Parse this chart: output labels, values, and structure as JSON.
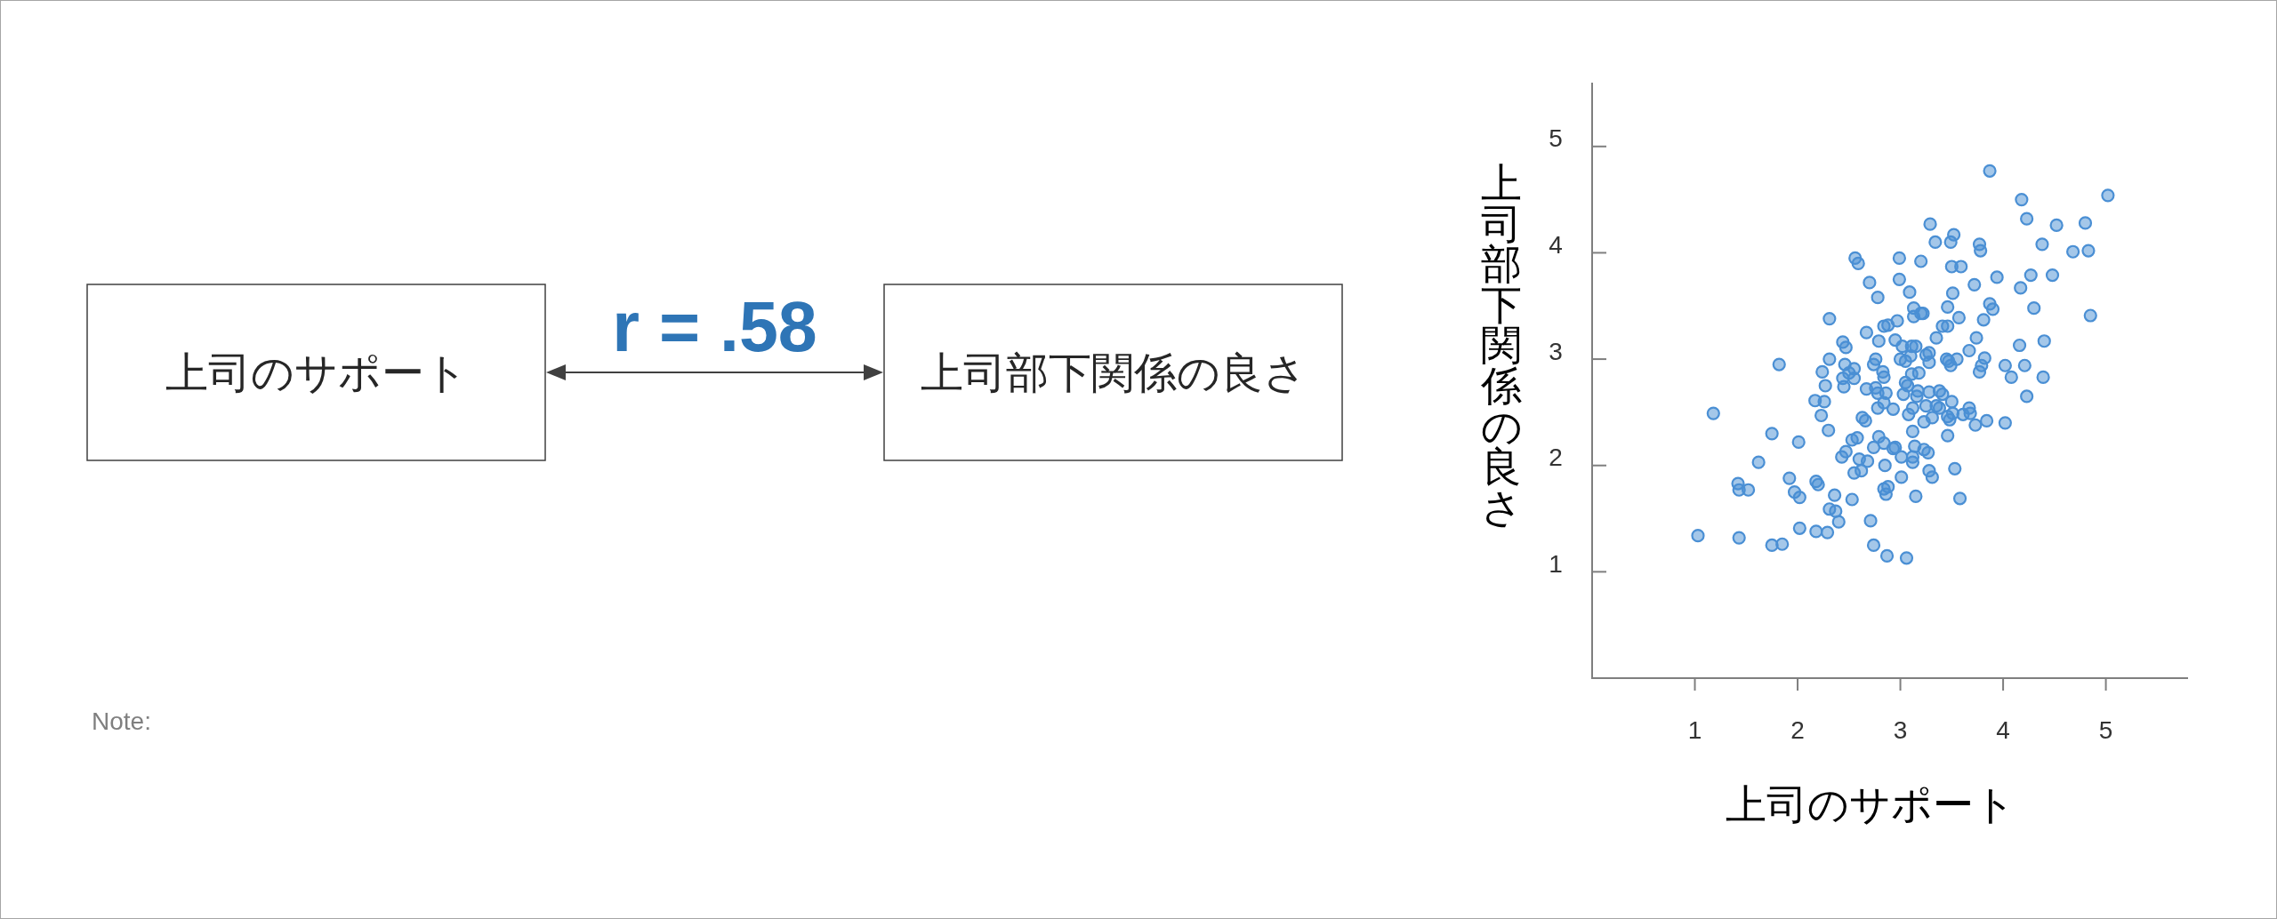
{
  "chart_data": [
    {
      "type": "other",
      "categories": [
        "上司のサポート",
        "上司部下関係の良さ"
      ],
      "annotations": [
        "r = .58",
        "Note:"
      ]
    },
    {
      "type": "scatter",
      "xlabel": "上司のサポート",
      "ylabel": "上司部下関係の良さ",
      "marker": "circle",
      "xlim": [
        0,
        5.8
      ],
      "ylim": [
        0,
        5.6
      ],
      "xticks": [
        1,
        2,
        3,
        4,
        5
      ],
      "yticks": [
        1,
        2,
        3,
        4,
        5
      ],
      "x": [
        3.87,
        5.02,
        4.18,
        4.23,
        3.29,
        4.52,
        4.8,
        3.52,
        3.34,
        3.49,
        3.77,
        3.78,
        4.38,
        2.56,
        2.59,
        2.99,
        3.2,
        4.68,
        4.83,
        3.5,
        3.59,
        2.7,
        2.99,
        3.94,
        3.72,
        4.27,
        4.48,
        4.17,
        2.78,
        3.09,
        3.51,
        3.13,
        3.13,
        3.2,
        3.22,
        3.46,
        3.87,
        3.9,
        4.3,
        2.31,
        2.84,
        2.88,
        2.97,
        3.41,
        3.46,
        3.57,
        3.81,
        4.85,
        2.67,
        2.79,
        2.95,
        3.35,
        2.44,
        2.47,
        3.02,
        3.11,
        3.15,
        3.74,
        4.16,
        4.4,
        3.28,
        3.25,
        3.67,
        2.31,
        2.76,
        3.0,
        3.05,
        3.1,
        3.28,
        3.45,
        3.47,
        3.49,
        3.55,
        3.82,
        3.79,
        3.77,
        4.02,
        4.21,
        1.82,
        2.46,
        2.55,
        2.74,
        2.24,
        2.5,
        2.44,
        2.55,
        2.83,
        2.84,
        3.11,
        3.18,
        4.08,
        4.39,
        2.27,
        2.45,
        3.05,
        3.07,
        2.67,
        2.76,
        2.78,
        2.86,
        3.03,
        3.17,
        3.16,
        3.28,
        3.38,
        3.41,
        2.17,
        2.26,
        3.5,
        4.23,
        2.78,
        2.84,
        2.93,
        3.12,
        3.25,
        3.35,
        3.38,
        3.67,
        3.68,
        2.23,
        1.18,
        2.63,
        2.66,
        3.08,
        3.31,
        3.23,
        3.46,
        3.48,
        3.51,
        3.61,
        3.73,
        3.84,
        4.02,
        2.3,
        3.12,
        3.46,
        1.75,
        2.01,
        2.53,
        2.58,
        2.79,
        2.74,
        2.84,
        2.93,
        2.95,
        3.14,
        3.23,
        3.27,
        2.47,
        2.43,
        2.6,
        2.68,
        3.01,
        3.12,
        3.12,
        2.85,
        3.53,
        1.62,
        2.55,
        2.62,
        3.28,
        3.31,
        1.92,
        2.18,
        2.2,
        3.01,
        1.42,
        1.43,
        1.52,
        1.97,
        2.02,
        2.36,
        2.84,
        2.88,
        2.86,
        2.53,
        3.15,
        3.58,
        2.31,
        2.37,
        2.4,
        2.71,
        2.02,
        2.18,
        2.29,
        1.03,
        1.43,
        1.75,
        1.85,
        2.74,
        2.87,
        3.06
      ],
      "series": [
        {
          "color": "#4a8fd4",
          "values": [
            4.77,
            4.54,
            4.5,
            4.32,
            4.27,
            4.26,
            4.28,
            4.17,
            4.1,
            4.1,
            4.08,
            4.02,
            4.08,
            3.95,
            3.9,
            3.95,
            3.92,
            4.01,
            4.02,
            3.87,
            3.87,
            3.72,
            3.75,
            3.77,
            3.7,
            3.79,
            3.79,
            3.67,
            3.58,
            3.63,
            3.62,
            3.48,
            3.4,
            3.43,
            3.43,
            3.49,
            3.52,
            3.47,
            3.48,
            3.38,
            3.31,
            3.32,
            3.36,
            3.31,
            3.31,
            3.39,
            3.37,
            3.41,
            3.25,
            3.17,
            3.18,
            3.2,
            3.16,
            3.11,
            3.12,
            3.12,
            3.12,
            3.2,
            3.13,
            3.17,
            3.06,
            3.04,
            3.08,
            3.0,
            3.0,
            3.0,
            2.98,
            3.03,
            2.97,
            3.0,
            2.98,
            2.94,
            3.0,
            3.01,
            2.94,
            2.88,
            2.94,
            2.94,
            2.95,
            2.95,
            2.91,
            2.95,
            2.88,
            2.87,
            2.82,
            2.82,
            2.88,
            2.83,
            2.86,
            2.87,
            2.83,
            2.83,
            2.75,
            2.74,
            2.78,
            2.75,
            2.72,
            2.73,
            2.68,
            2.68,
            2.67,
            2.7,
            2.65,
            2.69,
            2.7,
            2.67,
            2.61,
            2.6,
            2.6,
            2.65,
            2.54,
            2.59,
            2.53,
            2.54,
            2.56,
            2.56,
            2.54,
            2.54,
            2.49,
            2.47,
            2.49,
            2.45,
            2.42,
            2.48,
            2.45,
            2.41,
            2.46,
            2.43,
            2.49,
            2.48,
            2.38,
            2.42,
            2.4,
            2.33,
            2.32,
            2.28,
            2.3,
            2.22,
            2.24,
            2.26,
            2.27,
            2.17,
            2.21,
            2.16,
            2.17,
            2.18,
            2.15,
            2.12,
            2.13,
            2.08,
            2.06,
            2.04,
            2.08,
            2.08,
            2.03,
            2.0,
            1.97,
            2.03,
            1.93,
            1.95,
            1.95,
            1.89,
            1.88,
            1.85,
            1.82,
            1.89,
            1.83,
            1.77,
            1.77,
            1.75,
            1.7,
            1.72,
            1.78,
            1.8,
            1.73,
            1.68,
            1.71,
            1.69,
            1.59,
            1.57,
            1.47,
            1.48,
            1.41,
            1.38,
            1.37,
            1.34,
            1.32,
            1.25,
            1.26,
            1.25,
            1.15,
            1.13
          ]
        }
      ]
    }
  ]
}
